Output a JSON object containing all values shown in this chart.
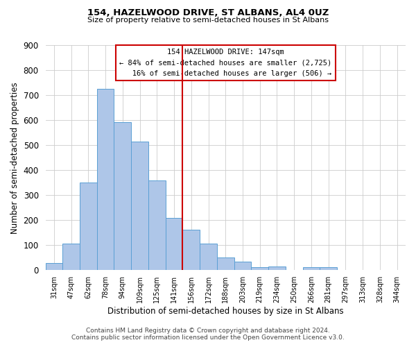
{
  "title": "154, HAZELWOOD DRIVE, ST ALBANS, AL4 0UZ",
  "subtitle": "Size of property relative to semi-detached houses in St Albans",
  "xlabel": "Distribution of semi-detached houses by size in St Albans",
  "ylabel": "Number of semi-detached properties",
  "bar_color": "#aec6e8",
  "bar_edge_color": "#5a9fd4",
  "categories": [
    "31sqm",
    "47sqm",
    "62sqm",
    "78sqm",
    "94sqm",
    "109sqm",
    "125sqm",
    "141sqm",
    "156sqm",
    "172sqm",
    "188sqm",
    "203sqm",
    "219sqm",
    "234sqm",
    "250sqm",
    "266sqm",
    "281sqm",
    "297sqm",
    "313sqm",
    "328sqm",
    "344sqm"
  ],
  "values": [
    30,
    107,
    350,
    725,
    593,
    514,
    360,
    210,
    163,
    106,
    52,
    35,
    12,
    15,
    0,
    12,
    12,
    0,
    0,
    0,
    0
  ],
  "ylim": [
    0,
    900
  ],
  "yticks": [
    0,
    100,
    200,
    300,
    400,
    500,
    600,
    700,
    800,
    900
  ],
  "property_label": "154 HAZELWOOD DRIVE: 147sqm",
  "pct_smaller": 84,
  "count_smaller": 2725,
  "pct_larger": 16,
  "count_larger": 506,
  "vline_bin_index": 7.5,
  "vline_color": "#cc0000",
  "footnote1": "Contains HM Land Registry data © Crown copyright and database right 2024.",
  "footnote2": "Contains public sector information licensed under the Open Government Licence v3.0.",
  "background_color": "#ffffff",
  "grid_color": "#cccccc"
}
